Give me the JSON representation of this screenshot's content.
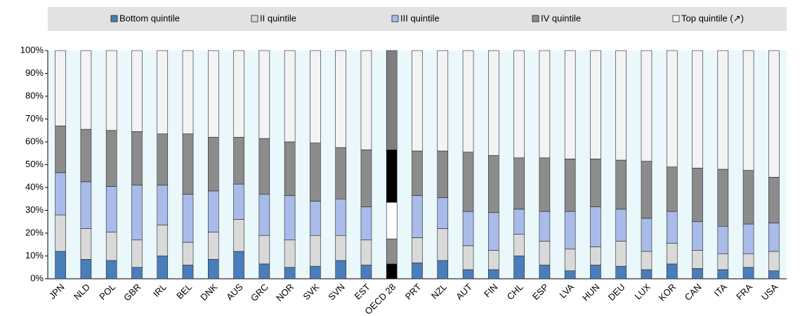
{
  "chart_data": {
    "type": "stacked_bar",
    "categories": [
      "JPN",
      "NLD",
      "POL",
      "GBR",
      "IRL",
      "BEL",
      "DNK",
      "AUS",
      "GRC",
      "NOR",
      "SVK",
      "SVN",
      "EST",
      "OECD 28",
      "PRT",
      "NZL",
      "AUT",
      "FIN",
      "CHL",
      "ESP",
      "LVA",
      "HUN",
      "DEU",
      "LUX",
      "KOR",
      "CAN",
      "ITA",
      "FRA",
      "USA"
    ],
    "series": [
      {
        "name": "Bottom quintile",
        "color": "#4a7ebb",
        "highlight_color": "#000000",
        "values": [
          12,
          8.5,
          8,
          5,
          10,
          6,
          8.5,
          12,
          6.5,
          5,
          5.5,
          8,
          6,
          6.5,
          7,
          8,
          4,
          4,
          10,
          6,
          3.5,
          6,
          5.5,
          4,
          6.5,
          4.5,
          4,
          5,
          3.5
        ]
      },
      {
        "name": "II quintile",
        "color": "#d9d9d9",
        "highlight_color": "#8c8c8c",
        "values": [
          16,
          13.5,
          12.5,
          12,
          13.5,
          10,
          12,
          14,
          12.5,
          12,
          13.5,
          11,
          11,
          11,
          11,
          14,
          10.5,
          8.5,
          9.5,
          10.5,
          9.5,
          8,
          11,
          8,
          9,
          8,
          7,
          6,
          8.5
        ]
      },
      {
        "name": "III quintile",
        "color": "#a9bbe9",
        "highlight_color": "#ffffff",
        "values": [
          18.5,
          20.5,
          20,
          24,
          17.5,
          21,
          18,
          15.5,
          18,
          19.5,
          15,
          16,
          14.5,
          16,
          18.5,
          13.5,
          15,
          16.5,
          11,
          13,
          16.5,
          17.5,
          14,
          14.5,
          14,
          12.5,
          12,
          13,
          12.5
        ]
      },
      {
        "name": "IV quintile",
        "color": "#8c8c8c",
        "highlight_color": "#000000",
        "values": [
          20.5,
          23,
          24.5,
          23.5,
          22.5,
          26.5,
          23.5,
          20.5,
          24.5,
          23.5,
          25.5,
          22.5,
          25,
          23,
          19.5,
          20.5,
          26,
          25,
          22.5,
          23.5,
          23,
          21,
          21.5,
          25,
          19.5,
          23.5,
          25,
          23.5,
          20
        ]
      },
      {
        "name": "Top quintile (↗)",
        "color": "#f3f3f6",
        "highlight_color": "#7f7f7f",
        "values": [
          33,
          34.5,
          35,
          35.5,
          36.5,
          36.5,
          38,
          38,
          38.5,
          40,
          40.5,
          42.5,
          43.5,
          43.5,
          44,
          44,
          44.5,
          46,
          47,
          47,
          47.5,
          47.5,
          48,
          48.5,
          51,
          51.5,
          52,
          52.5,
          55.5
        ]
      }
    ],
    "highlight_category": "OECD 28",
    "ylim": [
      0,
      100
    ],
    "yticks": [
      {
        "value": 0,
        "label": "0%"
      },
      {
        "value": 10,
        "label": "10%"
      },
      {
        "value": 20,
        "label": "20%"
      },
      {
        "value": 30,
        "label": "30%"
      },
      {
        "value": 40,
        "label": "40%"
      },
      {
        "value": 50,
        "label": "50%"
      },
      {
        "value": 60,
        "label": "60%"
      },
      {
        "value": 70,
        "label": "70%"
      },
      {
        "value": 80,
        "label": "80%"
      },
      {
        "value": 90,
        "label": "90%"
      },
      {
        "value": 100,
        "label": "100%"
      }
    ]
  }
}
